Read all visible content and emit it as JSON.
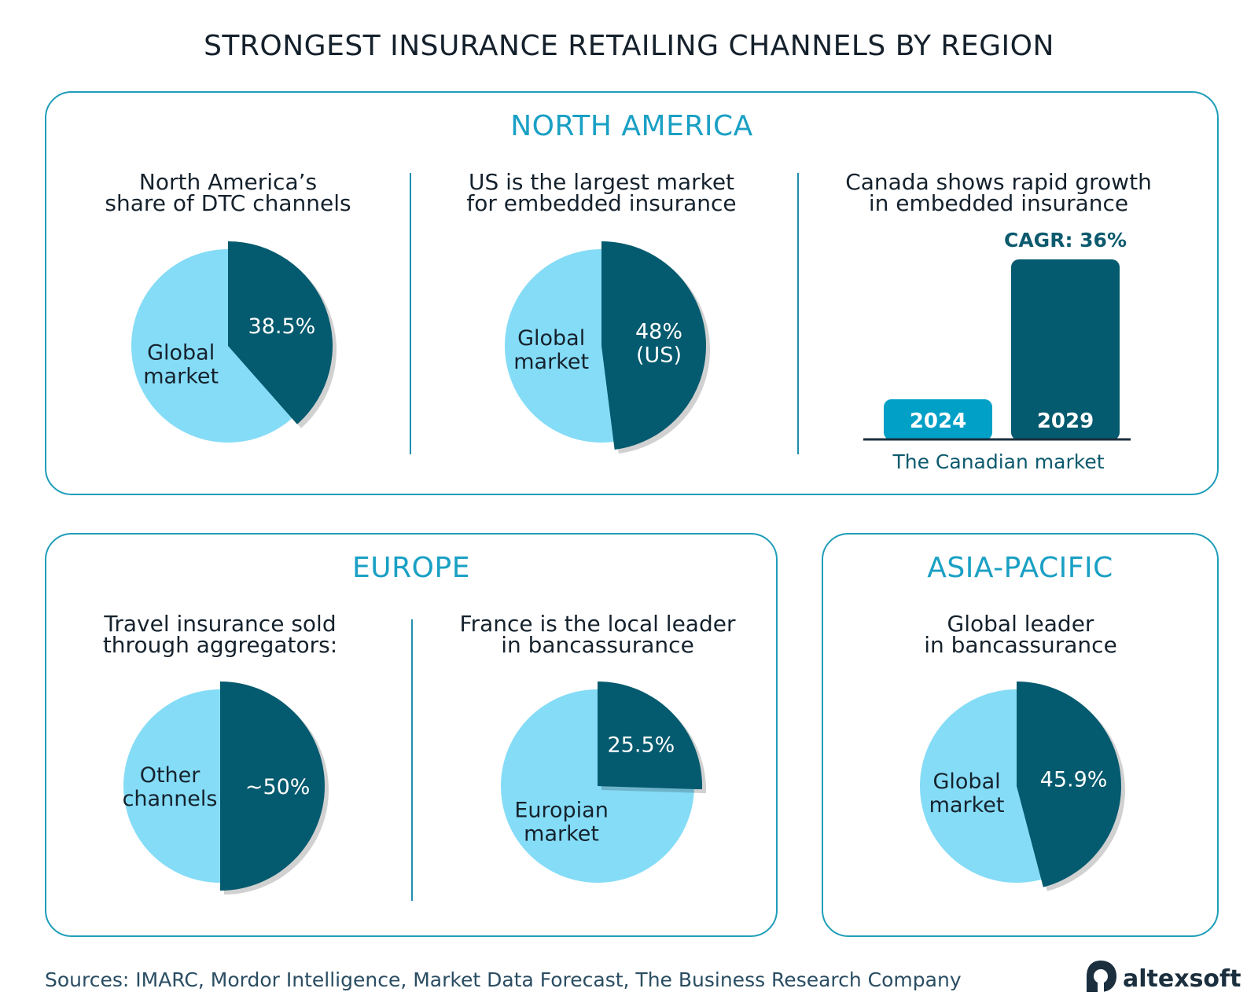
{
  "title": "STRONGEST INSURANCE RETAILING CHANNELS BY REGION",
  "colors": {
    "light": "#85dcf7",
    "dark": "#045a6e",
    "accent": "#1aa0c4",
    "bar2024": "#01a0c6"
  },
  "regions": {
    "north_america": "NORTH AMERICA",
    "europe": "EUROPE",
    "asia_pacific": "ASIA-PACIFIC"
  },
  "chart_data": [
    {
      "type": "pie",
      "title": "North America’s\nshare of DTC channels",
      "slices": [
        {
          "label": "38.5%",
          "value": 38.5,
          "highlight": true
        },
        {
          "label": "Global\nmarket",
          "value": 61.5
        }
      ]
    },
    {
      "type": "pie",
      "title": "US is the largest market\nfor embedded insurance",
      "slices": [
        {
          "label": "48%\n(US)",
          "value": 48,
          "highlight": true
        },
        {
          "label": "Global\nmarket",
          "value": 52
        }
      ]
    },
    {
      "type": "bar",
      "title": "Canada shows rapid growth\nin embedded insurance",
      "categories": [
        "2024",
        "2029"
      ],
      "values": [
        0.22,
        1.0
      ],
      "annotation": "CAGR: 36%",
      "xlabel": "The Canadian market"
    },
    {
      "type": "pie",
      "title": "Travel insurance sold\nthrough aggregators:",
      "slices": [
        {
          "label": "~50%",
          "value": 50,
          "highlight": true
        },
        {
          "label": "Other\nchannels",
          "value": 50
        }
      ]
    },
    {
      "type": "pie",
      "title": "France is the local leader\nin bancassurance",
      "slices": [
        {
          "label": "25.5%",
          "value": 25.5,
          "highlight": true
        },
        {
          "label": "Europian\nmarket",
          "value": 74.5
        }
      ]
    },
    {
      "type": "pie",
      "title": "Global leader\nin bancassurance",
      "slices": [
        {
          "label": "45.9%",
          "value": 45.9,
          "highlight": true
        },
        {
          "label": "Global\nmarket",
          "value": 54.1
        }
      ]
    }
  ],
  "sources": "Sources: IMARC, Mordor Intelligence, Market Data Forecast, The Business Research Company",
  "brand": "altexsoft"
}
